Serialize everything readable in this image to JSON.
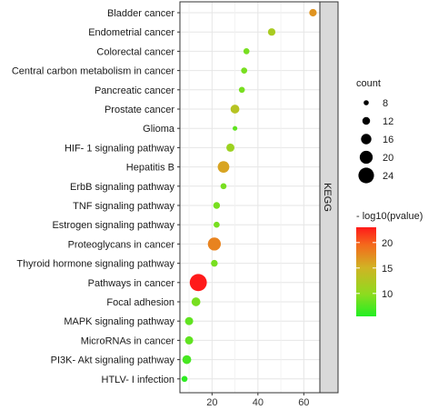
{
  "chart_data": {
    "type": "scatter",
    "facet_label": "KEGG",
    "grid": true,
    "xlim": [
      6,
      67
    ],
    "x_ticks": [
      20,
      40,
      60
    ],
    "categories": [
      "Bladder cancer",
      "Endometrial cancer",
      "Colorectal cancer",
      "Central carbon metabolism in cancer",
      "Pancreatic cancer",
      "Prostate cancer",
      "Glioma",
      "HIF- 1 signaling pathway",
      "Hepatitis B",
      "ErbB signaling pathway",
      "TNF signaling pathway",
      "Estrogen signaling pathway",
      "Proteoglycans in cancer",
      "Thyroid hormone signaling pathway",
      "Pathways in cancer",
      "Focal adhesion",
      "MAPK signaling pathway",
      "MicroRNAs in cancer",
      "PI3K- Akt signaling pathway",
      "HTLV- I infection"
    ],
    "points": [
      {
        "category": "Bladder cancer",
        "x": 64,
        "count": 11,
        "pvalue_log": 17
      },
      {
        "category": "Endometrial cancer",
        "x": 46,
        "count": 11,
        "pvalue_log": 12
      },
      {
        "category": "Colorectal cancer",
        "x": 35,
        "count": 9,
        "pvalue_log": 9
      },
      {
        "category": "Central carbon metabolism in cancer",
        "x": 34,
        "count": 9,
        "pvalue_log": 9
      },
      {
        "category": "Pancreatic cancer",
        "x": 33,
        "count": 9,
        "pvalue_log": 9
      },
      {
        "category": "Prostate cancer",
        "x": 30,
        "count": 13,
        "pvalue_log": 13
      },
      {
        "category": "Glioma",
        "x": 30,
        "count": 7,
        "pvalue_log": 8
      },
      {
        "category": "HIF- 1 signaling pathway",
        "x": 28,
        "count": 12,
        "pvalue_log": 11
      },
      {
        "category": "Hepatitis B",
        "x": 25,
        "count": 17,
        "pvalue_log": 16
      },
      {
        "category": "ErbB signaling pathway",
        "x": 25,
        "count": 9,
        "pvalue_log": 9
      },
      {
        "category": "TNF signaling pathway",
        "x": 22,
        "count": 10,
        "pvalue_log": 9
      },
      {
        "category": "Estrogen signaling pathway",
        "x": 22,
        "count": 9,
        "pvalue_log": 9
      },
      {
        "category": "Proteoglycans in cancer",
        "x": 21,
        "count": 19,
        "pvalue_log": 18
      },
      {
        "category": "Thyroid hormone signaling pathway",
        "x": 21,
        "count": 10,
        "pvalue_log": 9
      },
      {
        "category": "Pathways in cancer",
        "x": 14,
        "count": 25,
        "pvalue_log": 23
      },
      {
        "category": "Focal adhesion",
        "x": 13,
        "count": 13,
        "pvalue_log": 9
      },
      {
        "category": "MAPK signaling pathway",
        "x": 10,
        "count": 12,
        "pvalue_log": 8
      },
      {
        "category": "MicroRNAs in cancer",
        "x": 10,
        "count": 12,
        "pvalue_log": 8
      },
      {
        "category": "PI3K- Akt signaling pathway",
        "x": 9,
        "count": 13,
        "pvalue_log": 7
      },
      {
        "category": "HTLV- I infection",
        "x": 8,
        "count": 9,
        "pvalue_log": 6
      }
    ],
    "size_legend": {
      "title": "count",
      "values": [
        8,
        12,
        16,
        20,
        24
      ]
    },
    "color_legend": {
      "title": "- log10(pvalue)",
      "ticks": [
        10,
        15,
        20
      ],
      "range": [
        5.5,
        23
      ],
      "colors": {
        "low": "#22ee22",
        "mid": "#b2d32a",
        "high": "#ff1a1a"
      }
    },
    "legend_position": "right"
  }
}
